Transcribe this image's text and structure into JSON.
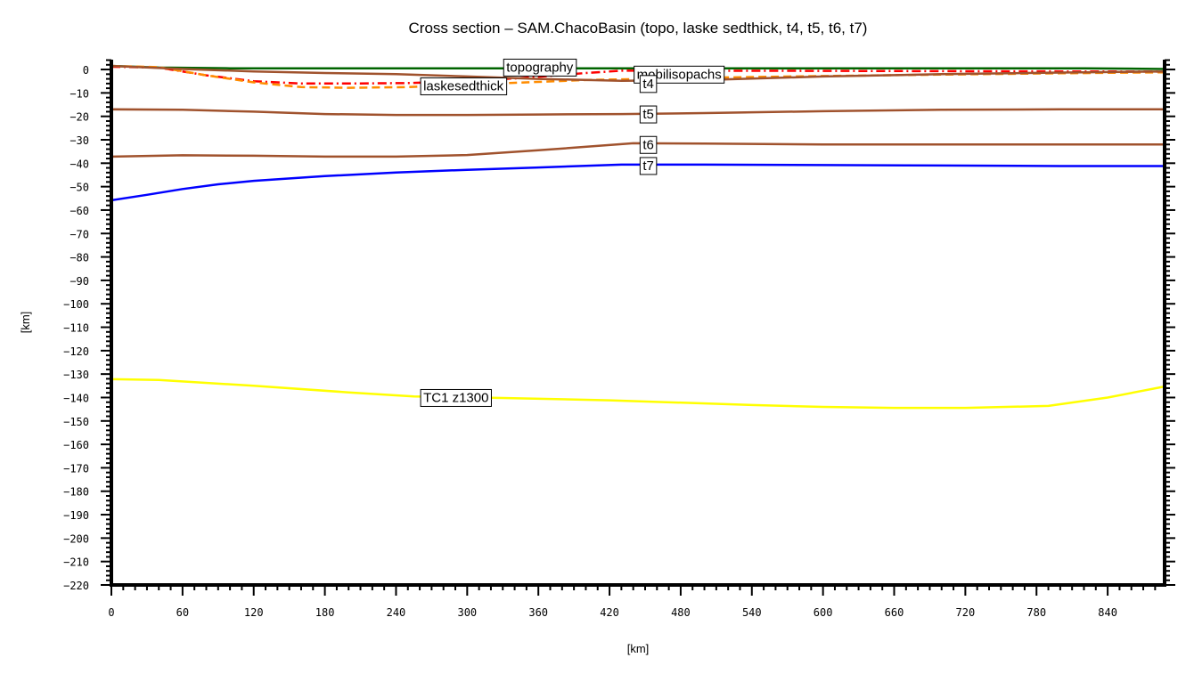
{
  "chart_data": {
    "type": "line",
    "title": "Cross section – SAM.ChacoBasin (topo, laske sedthick, t4, t5, t6, t7)",
    "xlabel": "[km]",
    "ylabel": "[km]",
    "xlim": [
      0,
      888
    ],
    "ylim": [
      -220,
      4.2
    ],
    "grid": false,
    "legend_position": "inline labels on curves",
    "x_ticks": [
      0,
      60,
      120,
      180,
      240,
      300,
      360,
      420,
      480,
      540,
      600,
      660,
      720,
      780,
      840
    ],
    "x_minor_step": 10,
    "y_ticks": [
      0,
      -10,
      -20,
      -30,
      -40,
      -50,
      -60,
      -70,
      -80,
      -90,
      -100,
      -110,
      -120,
      -130,
      -140,
      -150,
      -160,
      -170,
      -180,
      -190,
      -200,
      -210,
      -220
    ],
    "y_minor_step": 2,
    "series": [
      {
        "name": "topography",
        "color": "#006400",
        "style": "solid",
        "label_at": [
          330,
          1.0
        ],
        "x": [
          0,
          40,
          100,
          200,
          300,
          400,
          500,
          600,
          700,
          820,
          888
        ],
        "y": [
          1.5,
          0.8,
          0.5,
          0.5,
          0.5,
          0.5,
          0.5,
          0.5,
          0.5,
          0.5,
          0.2
        ]
      },
      {
        "name": "mobilisopachs",
        "color": "#ff0000",
        "style": "dashdot",
        "label_at": [
          440,
          -2.0
        ],
        "x": [
          0,
          40,
          80,
          120,
          160,
          200,
          250,
          300,
          350,
          400,
          430,
          500,
          600,
          700,
          800,
          888
        ],
        "y": [
          1.2,
          0.8,
          -2.5,
          -5.0,
          -6.0,
          -6.0,
          -5.8,
          -5.0,
          -3.5,
          -1.5,
          -0.5,
          -0.5,
          -0.6,
          -0.7,
          -0.8,
          -0.9
        ]
      },
      {
        "name": "laskesedthick",
        "color": "#ff8c00",
        "style": "dashed",
        "label_at": [
          260,
          -7.0
        ],
        "x": [
          0,
          40,
          80,
          120,
          160,
          200,
          250,
          300,
          350,
          400,
          450,
          500,
          600,
          700,
          800,
          888
        ],
        "y": [
          1.5,
          1.0,
          -2.5,
          -5.5,
          -7.5,
          -7.8,
          -7.5,
          -6.5,
          -5.5,
          -4.5,
          -4.0,
          -3.5,
          -2.8,
          -2.2,
          -1.6,
          -1.2
        ]
      },
      {
        "name": "t4",
        "color": "#a0522d",
        "style": "solid",
        "label_at": [
          445,
          -6.0
        ],
        "x": [
          0,
          60,
          120,
          180,
          240,
          300,
          360,
          430,
          500,
          600,
          700,
          800,
          888
        ],
        "y": [
          1.5,
          0.2,
          -0.8,
          -1.5,
          -2.0,
          -3.0,
          -4.0,
          -4.8,
          -4.5,
          -3.0,
          -2.0,
          -1.3,
          -0.8
        ]
      },
      {
        "name": "t5",
        "color": "#a0522d",
        "style": "solid",
        "label_at": [
          445,
          -19.0
        ],
        "x": [
          0,
          60,
          120,
          180,
          240,
          300,
          360,
          430,
          500,
          600,
          700,
          800,
          888
        ],
        "y": [
          -17.0,
          -17.2,
          -18.0,
          -19.0,
          -19.4,
          -19.4,
          -19.2,
          -19.0,
          -18.6,
          -17.8,
          -17.2,
          -17.0,
          -17.0
        ]
      },
      {
        "name": "t6",
        "color": "#a0522d",
        "style": "solid",
        "label_at": [
          445,
          -32.0
        ],
        "x": [
          0,
          60,
          120,
          180,
          240,
          300,
          360,
          440,
          500,
          600,
          700,
          800,
          888
        ],
        "y": [
          -37.2,
          -36.6,
          -36.8,
          -37.2,
          -37.2,
          -36.5,
          -34.5,
          -31.5,
          -31.6,
          -32.0,
          -32.0,
          -32.0,
          -32.0
        ]
      },
      {
        "name": "t7",
        "color": "#0000ff",
        "style": "solid",
        "label_at": [
          445,
          -41.0
        ],
        "x": [
          0,
          30,
          60,
          90,
          120,
          180,
          240,
          300,
          360,
          430,
          500,
          600,
          700,
          800,
          888
        ],
        "y": [
          -55.8,
          -53.5,
          -51.0,
          -49.0,
          -47.5,
          -45.5,
          -44.0,
          -42.8,
          -41.8,
          -40.6,
          -40.6,
          -40.8,
          -41.0,
          -41.2,
          -41.2
        ]
      },
      {
        "name": "TC1  z1300",
        "color": "#ffff00",
        "style": "solid",
        "label_at": [
          260,
          -140.0
        ],
        "x": [
          0,
          40,
          120,
          200,
          255,
          330,
          420,
          540,
          600,
          660,
          720,
          790,
          840,
          888
        ],
        "y": [
          -132.2,
          -132.5,
          -135.0,
          -137.8,
          -139.5,
          -140.2,
          -141.2,
          -143.2,
          -144.0,
          -144.4,
          -144.4,
          -143.6,
          -140.0,
          -135.3
        ]
      }
    ]
  }
}
